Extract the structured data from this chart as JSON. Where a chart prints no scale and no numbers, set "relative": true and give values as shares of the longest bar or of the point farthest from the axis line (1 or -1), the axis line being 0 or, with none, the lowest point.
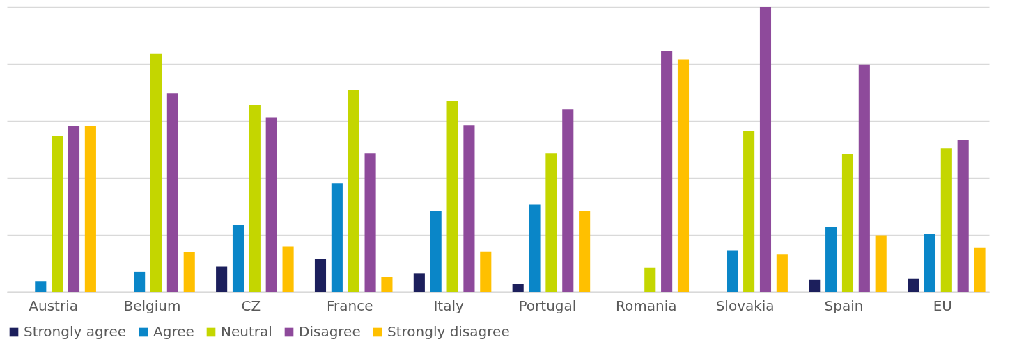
{
  "chart_data": {
    "type": "bar",
    "relative": true,
    "grid": "y",
    "legend": "bottom",
    "categories": [
      "Austria",
      "Belgium",
      "CZ",
      "France",
      "Italy",
      "Portugal",
      "Romania",
      "Slovakia",
      "Spain",
      "EU"
    ],
    "series": [
      {
        "name": "Strongly agree",
        "color": "#1c1f5c",
        "values": [
          0,
          0,
          0.089,
          0.116,
          0.065,
          0.027,
          0,
          0,
          0.042,
          0.047
        ]
      },
      {
        "name": "Agree",
        "color": "#0a86c8",
        "values": [
          0.036,
          0.071,
          0.234,
          0.38,
          0.285,
          0.306,
          0,
          0.145,
          0.228,
          0.205
        ]
      },
      {
        "name": "Neutral",
        "color": "#c4d600",
        "values": [
          0.549,
          0.837,
          0.656,
          0.709,
          0.671,
          0.487,
          0.086,
          0.564,
          0.484,
          0.504
        ]
      },
      {
        "name": "Disagree",
        "color": "#8e4a9b",
        "values": [
          0.582,
          0.697,
          0.611,
          0.487,
          0.585,
          0.641,
          0.846,
          1,
          0.798,
          0.534
        ]
      },
      {
        "name": "Strongly disagree",
        "color": "#ffc000",
        "values": [
          0.582,
          0.139,
          0.16,
          0.053,
          0.142,
          0.285,
          0.816,
          0.131,
          0.199,
          0.154
        ]
      }
    ]
  }
}
